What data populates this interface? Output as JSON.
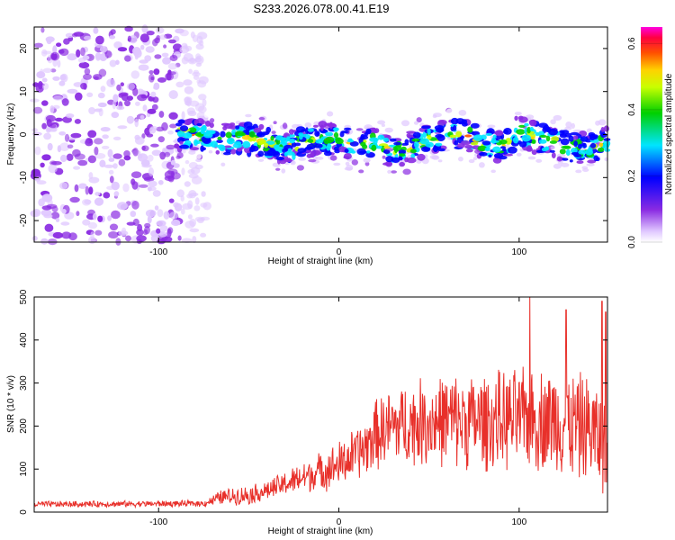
{
  "title": "S233.2026.078.00.41.E19",
  "chart_data": [
    {
      "type": "heatmap",
      "title": "S233.2026.078.00.41.E19",
      "xlabel": "Height of straight line (km)",
      "ylabel": "Frequency (Hz)",
      "xlim": [
        -169,
        149
      ],
      "ylim": [
        -25,
        25
      ],
      "xticks": [
        -100,
        0,
        100
      ],
      "yticks": [
        -20,
        -10,
        0,
        10,
        20
      ],
      "grid": false,
      "ridge": {
        "x": [
          -90,
          -80,
          -70,
          -60,
          -50,
          -40,
          -30,
          -20,
          -10,
          0,
          10,
          20,
          30,
          40,
          50,
          60,
          70,
          80,
          90,
          100,
          110,
          120,
          130,
          140,
          148
        ],
        "y": [
          0,
          0,
          -1,
          -1,
          -1,
          -2,
          -3,
          -2,
          -1,
          -1,
          -3,
          -2,
          -4,
          -3,
          -1,
          0,
          0,
          -2,
          -3,
          1,
          -1,
          -2,
          -3,
          -3,
          -2
        ]
      },
      "noise_region_x": [
        -169,
        -88
      ],
      "colorbar": {
        "label": "Normalized spectral amplitude",
        "range": [
          0,
          0.65
        ],
        "ticks": [
          "0.0",
          "0.2",
          "0.4",
          "0.6"
        ]
      }
    },
    {
      "type": "line",
      "xlabel": "Height of straight line (km)",
      "ylabel": "SNR (10 * v/v)",
      "xlim": [
        -169,
        149
      ],
      "ylim": [
        0,
        500
      ],
      "xticks": [
        -100,
        0,
        100
      ],
      "yticks": [
        0,
        100,
        200,
        300,
        400,
        500
      ],
      "grid": false,
      "color": "#e8302a",
      "envelope": {
        "x": [
          -169,
          -75,
          -65,
          -50,
          -40,
          -20,
          0,
          15,
          20,
          30,
          40,
          60,
          80,
          100,
          120,
          140,
          149
        ],
        "mid": [
          18,
          20,
          35,
          40,
          50,
          80,
          110,
          150,
          180,
          200,
          205,
          215,
          210,
          215,
          215,
          190,
          150
        ],
        "amp": [
          8,
          8,
          20,
          25,
          25,
          40,
          60,
          75,
          90,
          100,
          110,
          120,
          125,
          130,
          135,
          140,
          130
        ]
      },
      "peaks": [
        {
          "x": 106,
          "y": 505
        },
        {
          "x": 126,
          "y": 470
        },
        {
          "x": 146,
          "y": 490
        },
        {
          "x": 148,
          "y": 465
        }
      ]
    }
  ]
}
